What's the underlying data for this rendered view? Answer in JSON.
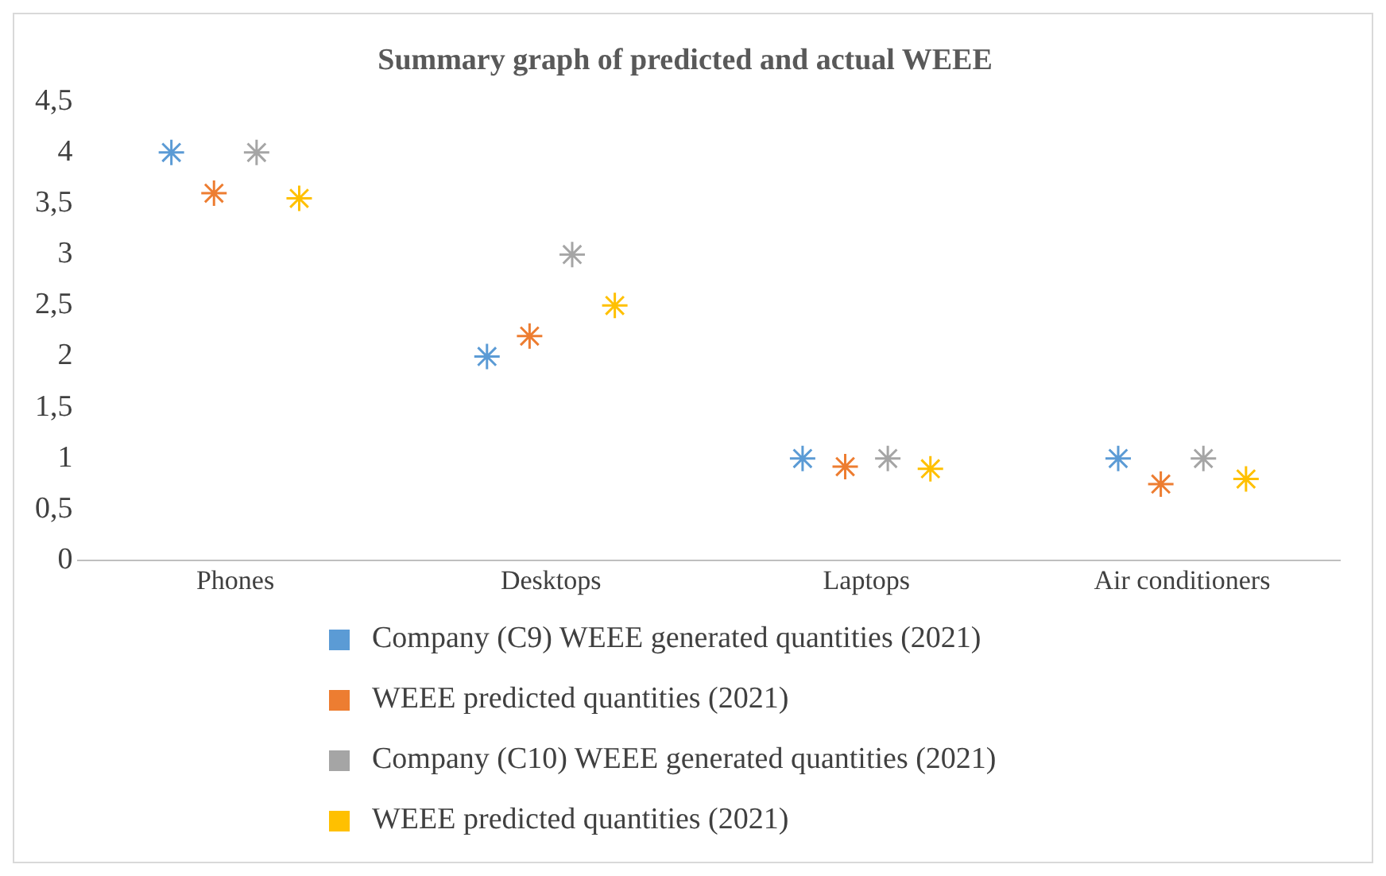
{
  "chart_data": {
    "type": "scatter",
    "title": "Summary graph of predicted and actual WEEE",
    "categories": [
      "Phones",
      "Desktops",
      "Laptops",
      "Air conditioners"
    ],
    "series": [
      {
        "name": "Company (C9) WEEE generated quantities (2021)",
        "color": "#5b9bd5",
        "x": [
          "Phones",
          "Desktops",
          "Laptops",
          "Air conditioners"
        ],
        "values": [
          4,
          2,
          1,
          1
        ]
      },
      {
        "name": "WEEE predicted quantities (2021)",
        "color": "#ed7d31",
        "x": [
          "Phones",
          "Desktops",
          "Laptops",
          "Air conditioners"
        ],
        "values": [
          3.6,
          2.2,
          0.92,
          0.75
        ]
      },
      {
        "name": "Company (C10) WEEE generated quantities (2021)",
        "color": "#a5a5a5",
        "x": [
          "Phones",
          "Desktops",
          "Laptops",
          "Air conditioners"
        ],
        "values": [
          4,
          3,
          1,
          1
        ]
      },
      {
        "name": "WEEE predicted quantities (2021)",
        "color": "#ffc000",
        "x": [
          "Phones",
          "Desktops",
          "Laptops",
          "Air conditioners"
        ],
        "values": [
          3.55,
          2.5,
          0.9,
          0.8
        ]
      }
    ],
    "ylim": [
      0,
      4.5
    ],
    "yticks": [
      0,
      {
        "value": 0.5,
        "label": "0,5"
      },
      1,
      {
        "value": 1.5,
        "label": "1,5"
      },
      2,
      {
        "value": 2.5,
        "label": "2,5"
      },
      3,
      {
        "value": 3.5,
        "label": "3,5"
      },
      4,
      {
        "value": 4.5,
        "label": "4,5"
      }
    ],
    "grid": false,
    "legend": "bottom",
    "marker": "cross"
  }
}
